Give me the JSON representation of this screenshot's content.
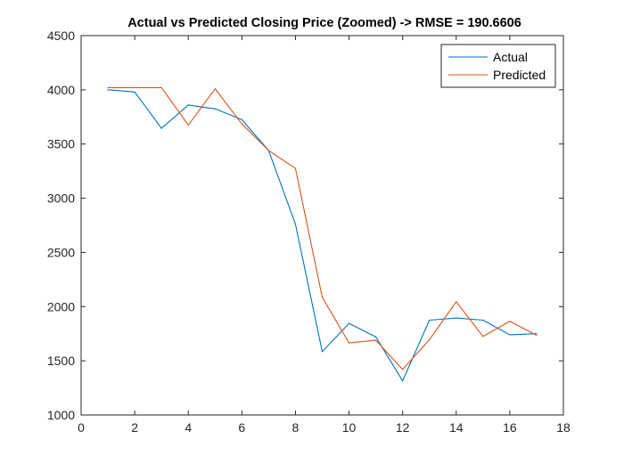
{
  "chart_data": {
    "type": "line",
    "title": "Actual vs Predicted Closing Price (Zoomed) -> RMSE = 190.6606",
    "xlabel": "",
    "ylabel": "",
    "xlim": [
      0,
      18
    ],
    "ylim": [
      1000,
      4500
    ],
    "x_ticks": [
      "0",
      "2",
      "4",
      "6",
      "8",
      "10",
      "12",
      "14",
      "16",
      "18"
    ],
    "y_ticks": [
      "1000",
      "1500",
      "2000",
      "2500",
      "3000",
      "3500",
      "4000",
      "4500"
    ],
    "x": [
      1,
      2,
      3,
      4,
      5,
      6,
      7,
      8,
      9,
      10,
      11,
      12,
      13,
      14,
      15,
      16,
      17
    ],
    "series": [
      {
        "name": "Actual",
        "color": "#0072BD",
        "values": [
          4000,
          3980,
          3645,
          3860,
          3825,
          3725,
          3440,
          2760,
          1585,
          1845,
          1720,
          1315,
          1875,
          1895,
          1875,
          1740,
          1750
        ]
      },
      {
        "name": "Predicted",
        "color": "#D95319",
        "values": [
          4020,
          4020,
          4020,
          3675,
          4010,
          3685,
          3440,
          3275,
          2085,
          1665,
          1690,
          1420,
          1695,
          2045,
          1725,
          1865,
          1735
        ]
      }
    ],
    "legend": "top-right",
    "grid": false
  }
}
